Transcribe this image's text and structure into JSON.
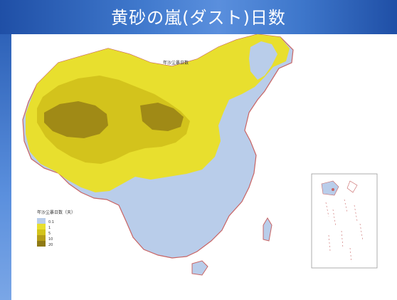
{
  "slide": {
    "title": "黄砂の嵐(ダスト)日数"
  },
  "map": {
    "inner_title": "年沙尘暴日数",
    "legend": {
      "title": "年沙尘暴日数（天）",
      "entries": [
        {
          "label": "0.1",
          "color": "#b9cdea"
        },
        {
          "label": "1",
          "color": "#e8df2e"
        },
        {
          "label": "5",
          "color": "#d3c31c"
        },
        {
          "label": "10",
          "color": "#b59d18"
        },
        {
          "label": "20",
          "color": "#8f7a14"
        }
      ]
    },
    "colors": {
      "ocean": "#ffffff",
      "border": "#c86464",
      "low": "#b9cdea",
      "mid": "#e8df2e",
      "high": "#b59d18"
    }
  }
}
